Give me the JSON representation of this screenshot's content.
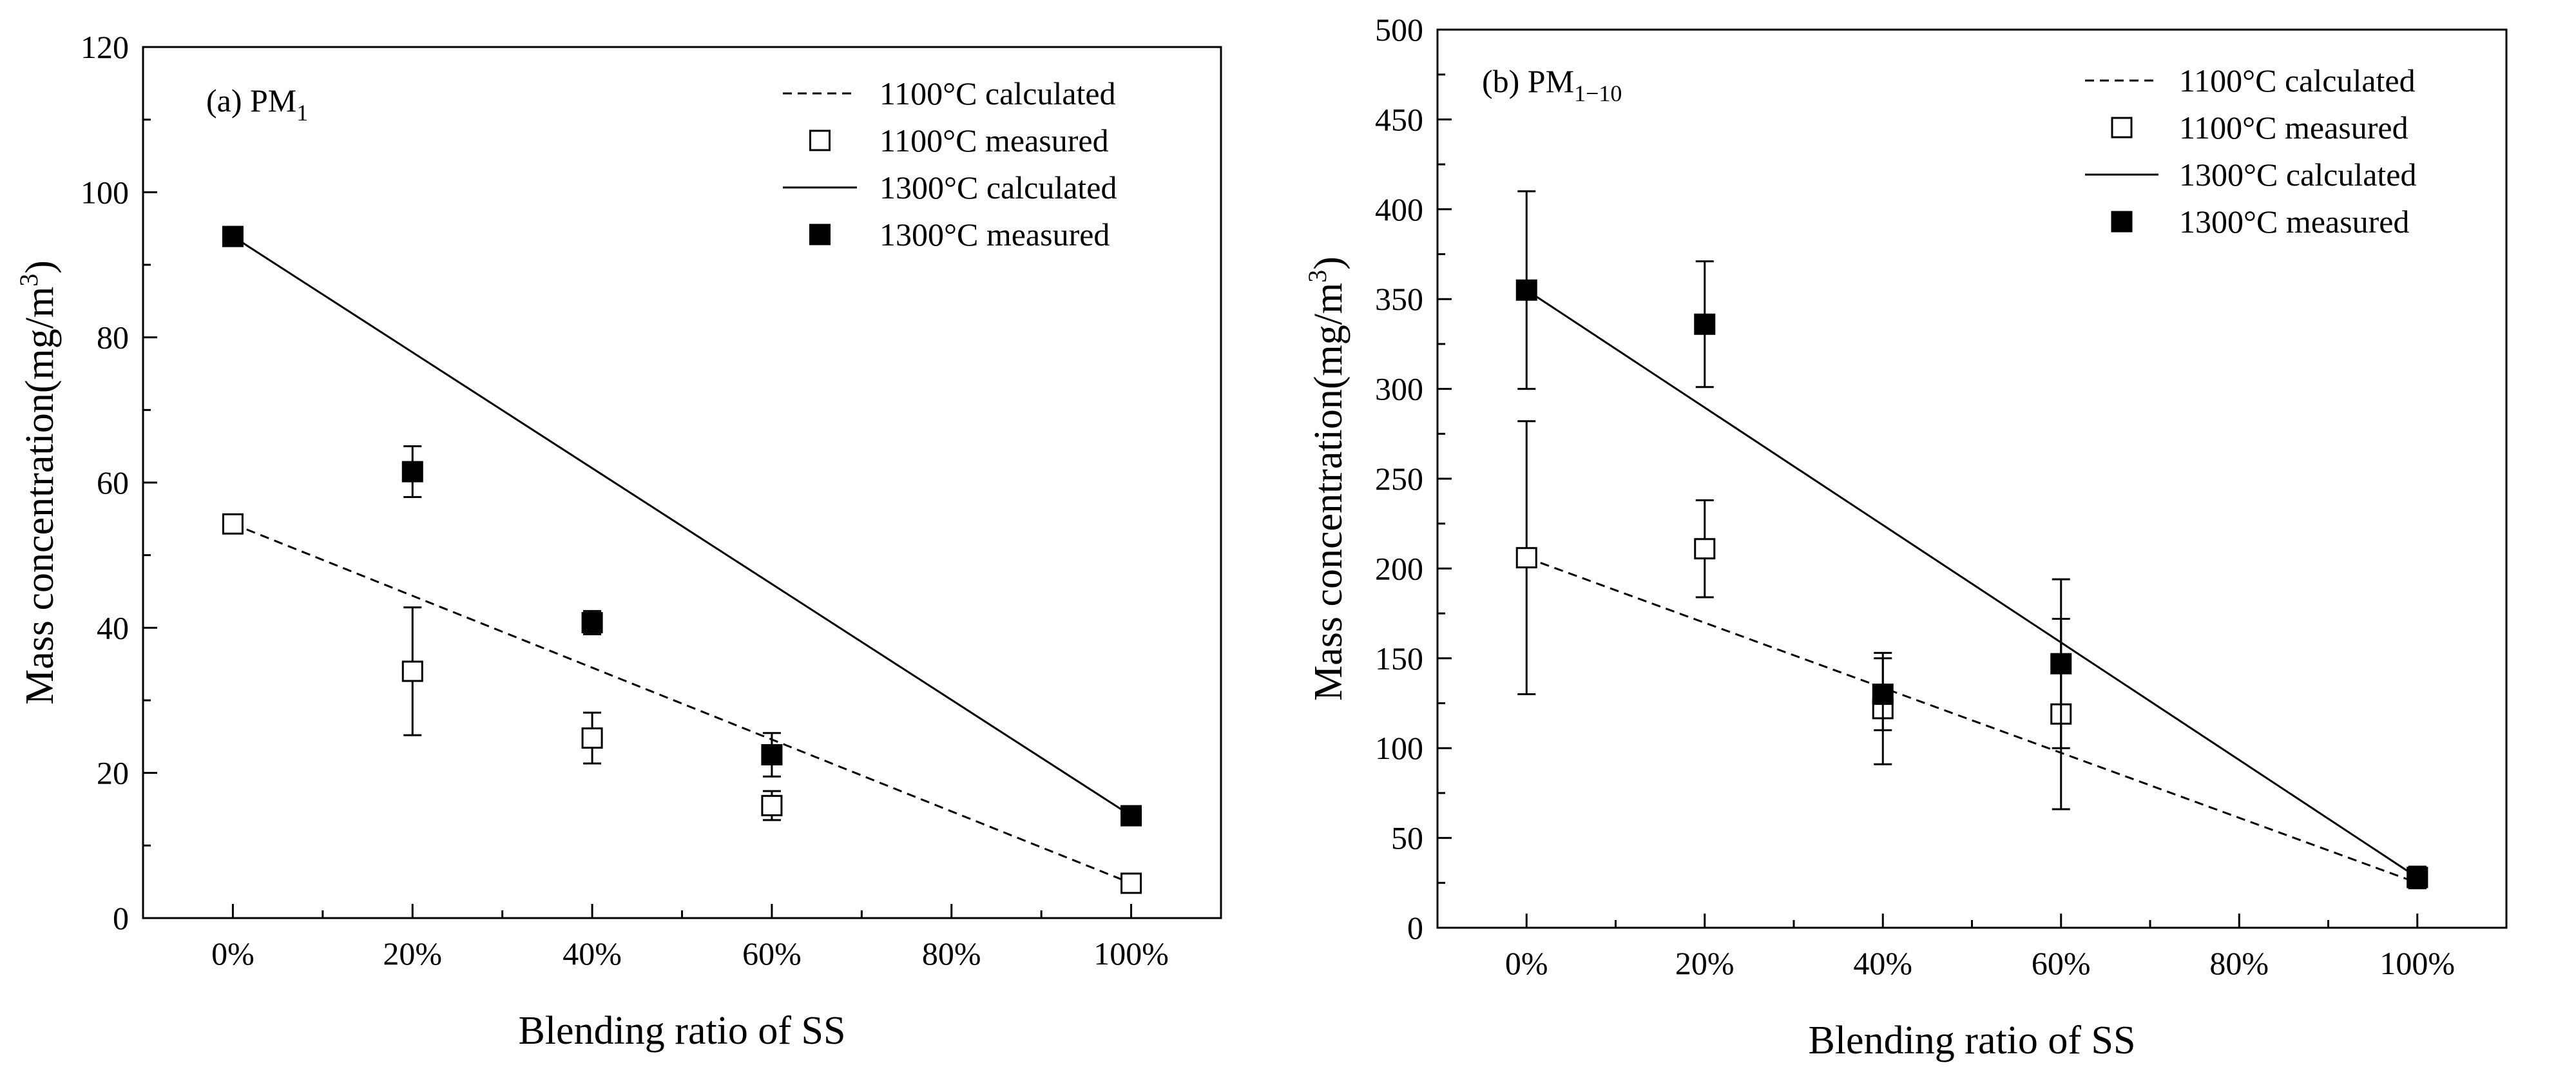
{
  "chart_data": [
    {
      "type": "scatter",
      "panel_label": "(a) PM",
      "panel_label_sub": "1",
      "xlabel": "Blending ratio of SS",
      "ylabel_main": "Mass concentration(mg/m",
      "ylabel_sup": "3",
      "ylabel_close": ")",
      "x_ticks": [
        "0%",
        "20%",
        "40%",
        "60%",
        "80%",
        "100%"
      ],
      "y_ticks": [
        0,
        20,
        40,
        60,
        80,
        100,
        120
      ],
      "xlim": [
        -0.1,
        1.1
      ],
      "ylim": [
        0,
        120
      ],
      "legend_position": "top-right",
      "series": [
        {
          "name": "1100°C calculated",
          "kind": "line",
          "dash": "dashed",
          "x": [
            0,
            1
          ],
          "y": [
            54.3,
            4.8
          ]
        },
        {
          "name": "1100°C measured",
          "kind": "points",
          "marker": "open-square",
          "x": [
            0,
            0.2,
            0.4,
            0.6,
            1.0
          ],
          "y": [
            54.3,
            34,
            24.8,
            15.5,
            4.8
          ],
          "err": [
            0.8,
            8.8,
            3.5,
            2.0,
            0.8
          ]
        },
        {
          "name": "1300°C calculated",
          "kind": "line",
          "dash": "solid",
          "x": [
            0,
            1
          ],
          "y": [
            93.9,
            14.1
          ]
        },
        {
          "name": "1300°C measured",
          "kind": "points",
          "marker": "filled-square",
          "x": [
            0,
            0.2,
            0.4,
            0.6,
            1.0
          ],
          "y": [
            93.9,
            61.5,
            40.7,
            22.5,
            14.1
          ],
          "err": [
            0.6,
            3.5,
            1.6,
            3.0,
            0.6
          ]
        }
      ]
    },
    {
      "type": "scatter",
      "panel_label": "(b) PM",
      "panel_label_sub": "1−10",
      "xlabel": "Blending ratio of SS",
      "ylabel_main": "Mass concentration(mg/m",
      "ylabel_sup": "3",
      "ylabel_close": ")",
      "x_ticks": [
        "0%",
        "20%",
        "40%",
        "60%",
        "80%",
        "100%"
      ],
      "y_ticks": [
        0,
        50,
        100,
        150,
        200,
        250,
        300,
        350,
        400,
        450,
        500
      ],
      "xlim": [
        -0.1,
        1.1
      ],
      "ylim": [
        0,
        500
      ],
      "legend_position": "top-right",
      "series": [
        {
          "name": "1100°C calculated",
          "kind": "line",
          "dash": "dashed",
          "x": [
            0,
            1
          ],
          "y": [
            206,
            25
          ]
        },
        {
          "name": "1100°C measured",
          "kind": "points",
          "marker": "open-square",
          "x": [
            0,
            0.2,
            0.4,
            0.6,
            1.0
          ],
          "y": [
            206,
            211,
            122,
            119,
            28
          ],
          "err": [
            76,
            27,
            31,
            53,
            6
          ]
        },
        {
          "name": "1300°C calculated",
          "kind": "line",
          "dash": "solid",
          "x": [
            0,
            1
          ],
          "y": [
            355,
            28
          ]
        },
        {
          "name": "1300°C measured",
          "kind": "points",
          "marker": "filled-square",
          "x": [
            0,
            0.2,
            0.4,
            0.6,
            1.0
          ],
          "y": [
            355,
            336,
            130,
            147,
            28
          ],
          "err": [
            55,
            35,
            20,
            47,
            6
          ]
        }
      ]
    }
  ]
}
